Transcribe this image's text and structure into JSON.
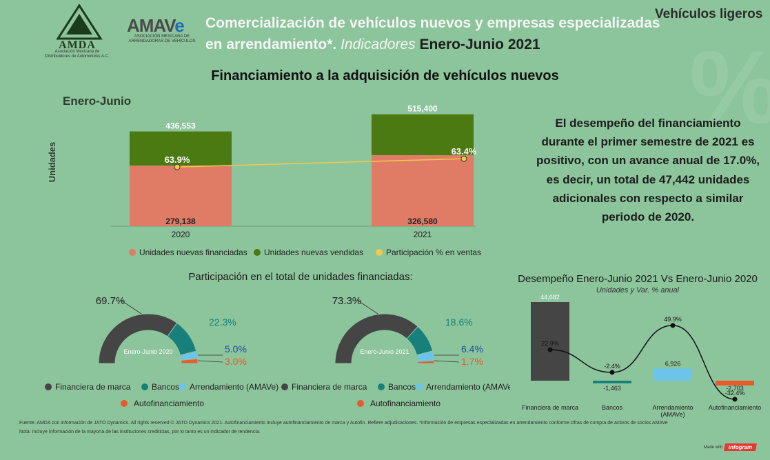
{
  "header": {
    "title_line1": "Comercialización de vehículos nuevos y empresas especializadas",
    "title_line2_a": "en arrendamiento*.",
    "title_line2_b": "Indicadores",
    "title_line2_c": "Enero-Junio 2021",
    "category": "Vehículos ligeros",
    "amda_name": "AMDA",
    "amda_sub1": "Asociación Mexicana de",
    "amda_sub2": "Distribuidores de Automotores A.C.",
    "amave_name": "AMAV",
    "amave_e": "e",
    "amave_sub1": "ASOCIACIÓN MEXICANA DE",
    "amave_sub2": "ARRENDADORAS DE VEHÍCULOS"
  },
  "section_title": "Financiamiento a la adquisición de vehículos nuevos",
  "summary": "El desempeño del financiamiento durante el primer semestre de 2021 es positivo, con un avance anual de 17.0%, es decir, un total de 47,442 unidades adicionales con respecto a similar periodo de 2020.",
  "pie_section_title": "Participación en el total de unidades financiadas:",
  "desemp_title": "Desempeño Enero-Junio 2021 Vs Enero-Junio 2020",
  "desemp_subtitle": "Unidades y Var. % anual",
  "footer_line1": "Fuente: AMDA con información de JATO Dynamics. All rights reserved © JATO Dynamics 2021. Autofinanciamiento incluye autofinanciamiento de marca y Autofin. Refiere adjudicaciones. *Información de empresas especializadas en arrendamiento conforme cifras de compra de activos de socios AMAVe",
  "footer_line2": "Nota: Incluye información de la mayoría de las instituciones crediticias, por lo tanto es un indicador de tendencia.",
  "made_with": "Made with",
  "infogram": "infogram",
  "colors": {
    "background": "#8cc49b",
    "financed": "#e07b65",
    "sold": "#4b7a13",
    "participation": "#f2c94c",
    "financiera": "#454545",
    "bancos": "#17807a",
    "arrendamiento": "#6cc4ea",
    "autofin": "#e85a2c"
  },
  "chart_data": [
    {
      "type": "bar",
      "title": "Enero-Junio",
      "ylabel": "Unidades",
      "categories": [
        "2020",
        "2021"
      ],
      "series": [
        {
          "name": "Unidades nuevas financiadas",
          "values": [
            279138,
            326580
          ],
          "labels": [
            "279,138",
            "326,580"
          ]
        },
        {
          "name": "Unidades nuevas vendidas",
          "values": [
            436553,
            515400
          ],
          "labels": [
            "436,553",
            "515,400"
          ]
        },
        {
          "name": "Participación % en ventas",
          "values": [
            63.9,
            63.4
          ],
          "labels": [
            "63.9%",
            "63.4%"
          ]
        }
      ],
      "ylim": [
        0,
        540000
      ],
      "legend": "bottom"
    },
    {
      "type": "pie",
      "title": "Enero-Junio 2020",
      "categories": [
        "Financiera de marca",
        "Bancos",
        "Arrendamiento (AMAVe)",
        "Autofinanciamiento"
      ],
      "values": [
        69.7,
        22.3,
        5.0,
        3.0
      ],
      "labels": [
        "69.7%",
        "22.3%",
        "5.0%",
        "3.0%"
      ]
    },
    {
      "type": "pie",
      "title": "Enero-Junio 2021",
      "categories": [
        "Financiera de marca",
        "Bancos",
        "Arrendamiento (AMAVe)",
        "Autofinanciamiento"
      ],
      "values": [
        73.3,
        18.6,
        6.4,
        1.7
      ],
      "labels": [
        "73.3%",
        "18.6%",
        "6.4%",
        "1.7%"
      ]
    },
    {
      "type": "bar",
      "title": "Desempeño Enero-Junio 2021 Vs Enero-Junio 2020",
      "categories": [
        "Financiera de marca",
        "Bancos",
        "Arrendamiento (AMAVe)",
        "Autofinanciamiento"
      ],
      "category_lines": [
        [
          "Financiera de marca"
        ],
        [
          "Bancos"
        ],
        [
          "Arrendamiento",
          "(AMAVe)"
        ],
        [
          "Autofinanciamiento"
        ]
      ],
      "series": [
        {
          "name": "Unidades",
          "values": [
            44682,
            -1463,
            6926,
            -2703
          ],
          "labels": [
            "44,682",
            "-1,463",
            "6,926",
            "-2,703"
          ]
        },
        {
          "name": "Var. % anual",
          "values": [
            22.9,
            -2.4,
            49.9,
            -32.4
          ],
          "labels": [
            "22.9%",
            "-2.4%",
            "49.9%",
            "-32.4%"
          ]
        }
      ]
    }
  ]
}
